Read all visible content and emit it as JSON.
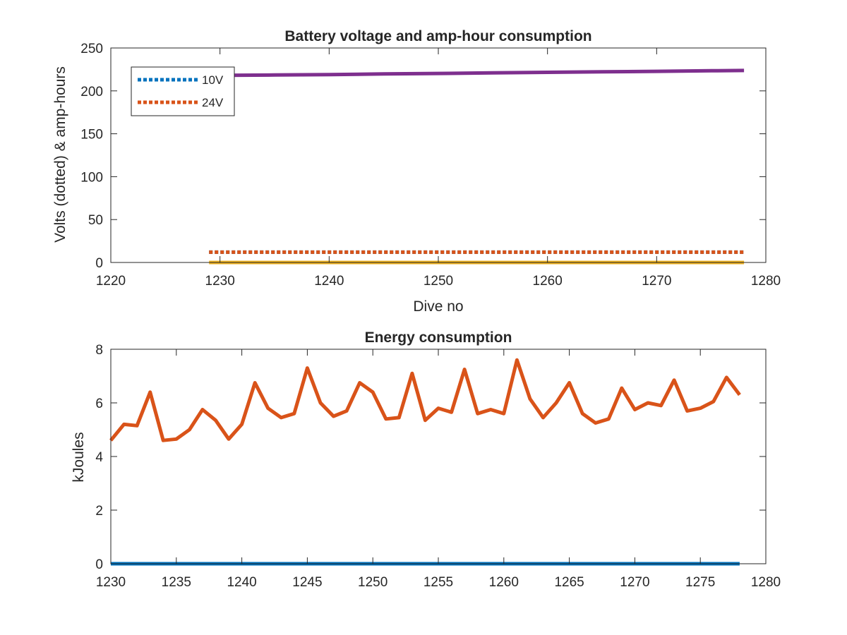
{
  "chart_data": [
    {
      "type": "line",
      "title": "Battery voltage and amp-hour consumption",
      "xlabel": "Dive no",
      "ylabel": "Volts (dotted) & amp-hours",
      "xlim": [
        1220,
        1280
      ],
      "ylim": [
        0,
        250
      ],
      "xticks": [
        "1220",
        "1230",
        "1240",
        "1250",
        "1260",
        "1270",
        "1280"
      ],
      "yticks": [
        "0",
        "50",
        "100",
        "150",
        "200",
        "250"
      ],
      "grid": false,
      "legend": {
        "placement": "top-left",
        "entries": [
          "10V",
          "24V"
        ]
      },
      "series": [
        {
          "name": "10V",
          "style": "dotted",
          "color": "#0072BD",
          "x": [
            1229,
            1278
          ],
          "y": [
            12,
            12
          ]
        },
        {
          "name": "24V",
          "style": "dotted",
          "color": "#D95319",
          "x": [
            1229,
            1278
          ],
          "y": [
            12,
            12
          ]
        },
        {
          "style": "solid",
          "color": "#EDB120",
          "x": [
            1229,
            1278
          ],
          "y": [
            0,
            0
          ]
        },
        {
          "style": "solid",
          "color": "#7E2F8E",
          "x": [
            1229,
            1235,
            1240,
            1245,
            1250,
            1255,
            1260,
            1265,
            1270,
            1275,
            1278
          ],
          "y": [
            218,
            218.5,
            219,
            219.7,
            220.3,
            221,
            221.6,
            222.2,
            222.8,
            223.4,
            223.8
          ]
        }
      ]
    },
    {
      "type": "line",
      "title": "Energy consumption",
      "xlabel": "",
      "ylabel": "kJoules",
      "xlim": [
        1230,
        1280
      ],
      "ylim": [
        0,
        8
      ],
      "xticks": [
        "1230",
        "1235",
        "1240",
        "1245",
        "1250",
        "1255",
        "1260",
        "1265",
        "1270",
        "1275",
        "1280"
      ],
      "yticks": [
        "0",
        "2",
        "4",
        "6",
        "8"
      ],
      "grid": false,
      "series": [
        {
          "style": "solid",
          "color": "#0072BD",
          "x": [
            1230,
            1278
          ],
          "y": [
            0,
            0
          ]
        },
        {
          "style": "solid",
          "color": "#D95319",
          "x": [
            1230,
            1231,
            1232,
            1233,
            1234,
            1235,
            1236,
            1237,
            1238,
            1239,
            1240,
            1241,
            1242,
            1243,
            1244,
            1245,
            1246,
            1247,
            1248,
            1249,
            1250,
            1251,
            1252,
            1253,
            1254,
            1255,
            1256,
            1257,
            1258,
            1259,
            1260,
            1261,
            1262,
            1263,
            1264,
            1265,
            1266,
            1267,
            1268,
            1269,
            1270,
            1271,
            1272,
            1273,
            1274,
            1275,
            1276,
            1277,
            1278
          ],
          "y": [
            4.6,
            5.2,
            5.15,
            6.4,
            4.6,
            4.65,
            5.0,
            5.75,
            5.35,
            4.65,
            5.2,
            6.75,
            5.8,
            5.45,
            5.6,
            7.3,
            6.0,
            5.5,
            5.7,
            6.75,
            6.4,
            5.4,
            5.45,
            7.1,
            5.35,
            5.8,
            5.65,
            7.25,
            5.6,
            5.75,
            5.6,
            7.6,
            6.15,
            5.45,
            6.0,
            6.75,
            5.6,
            5.25,
            5.4,
            6.55,
            5.75,
            6.0,
            5.9,
            6.85,
            5.7,
            5.8,
            6.05,
            6.95,
            6.3
          ]
        }
      ]
    }
  ]
}
